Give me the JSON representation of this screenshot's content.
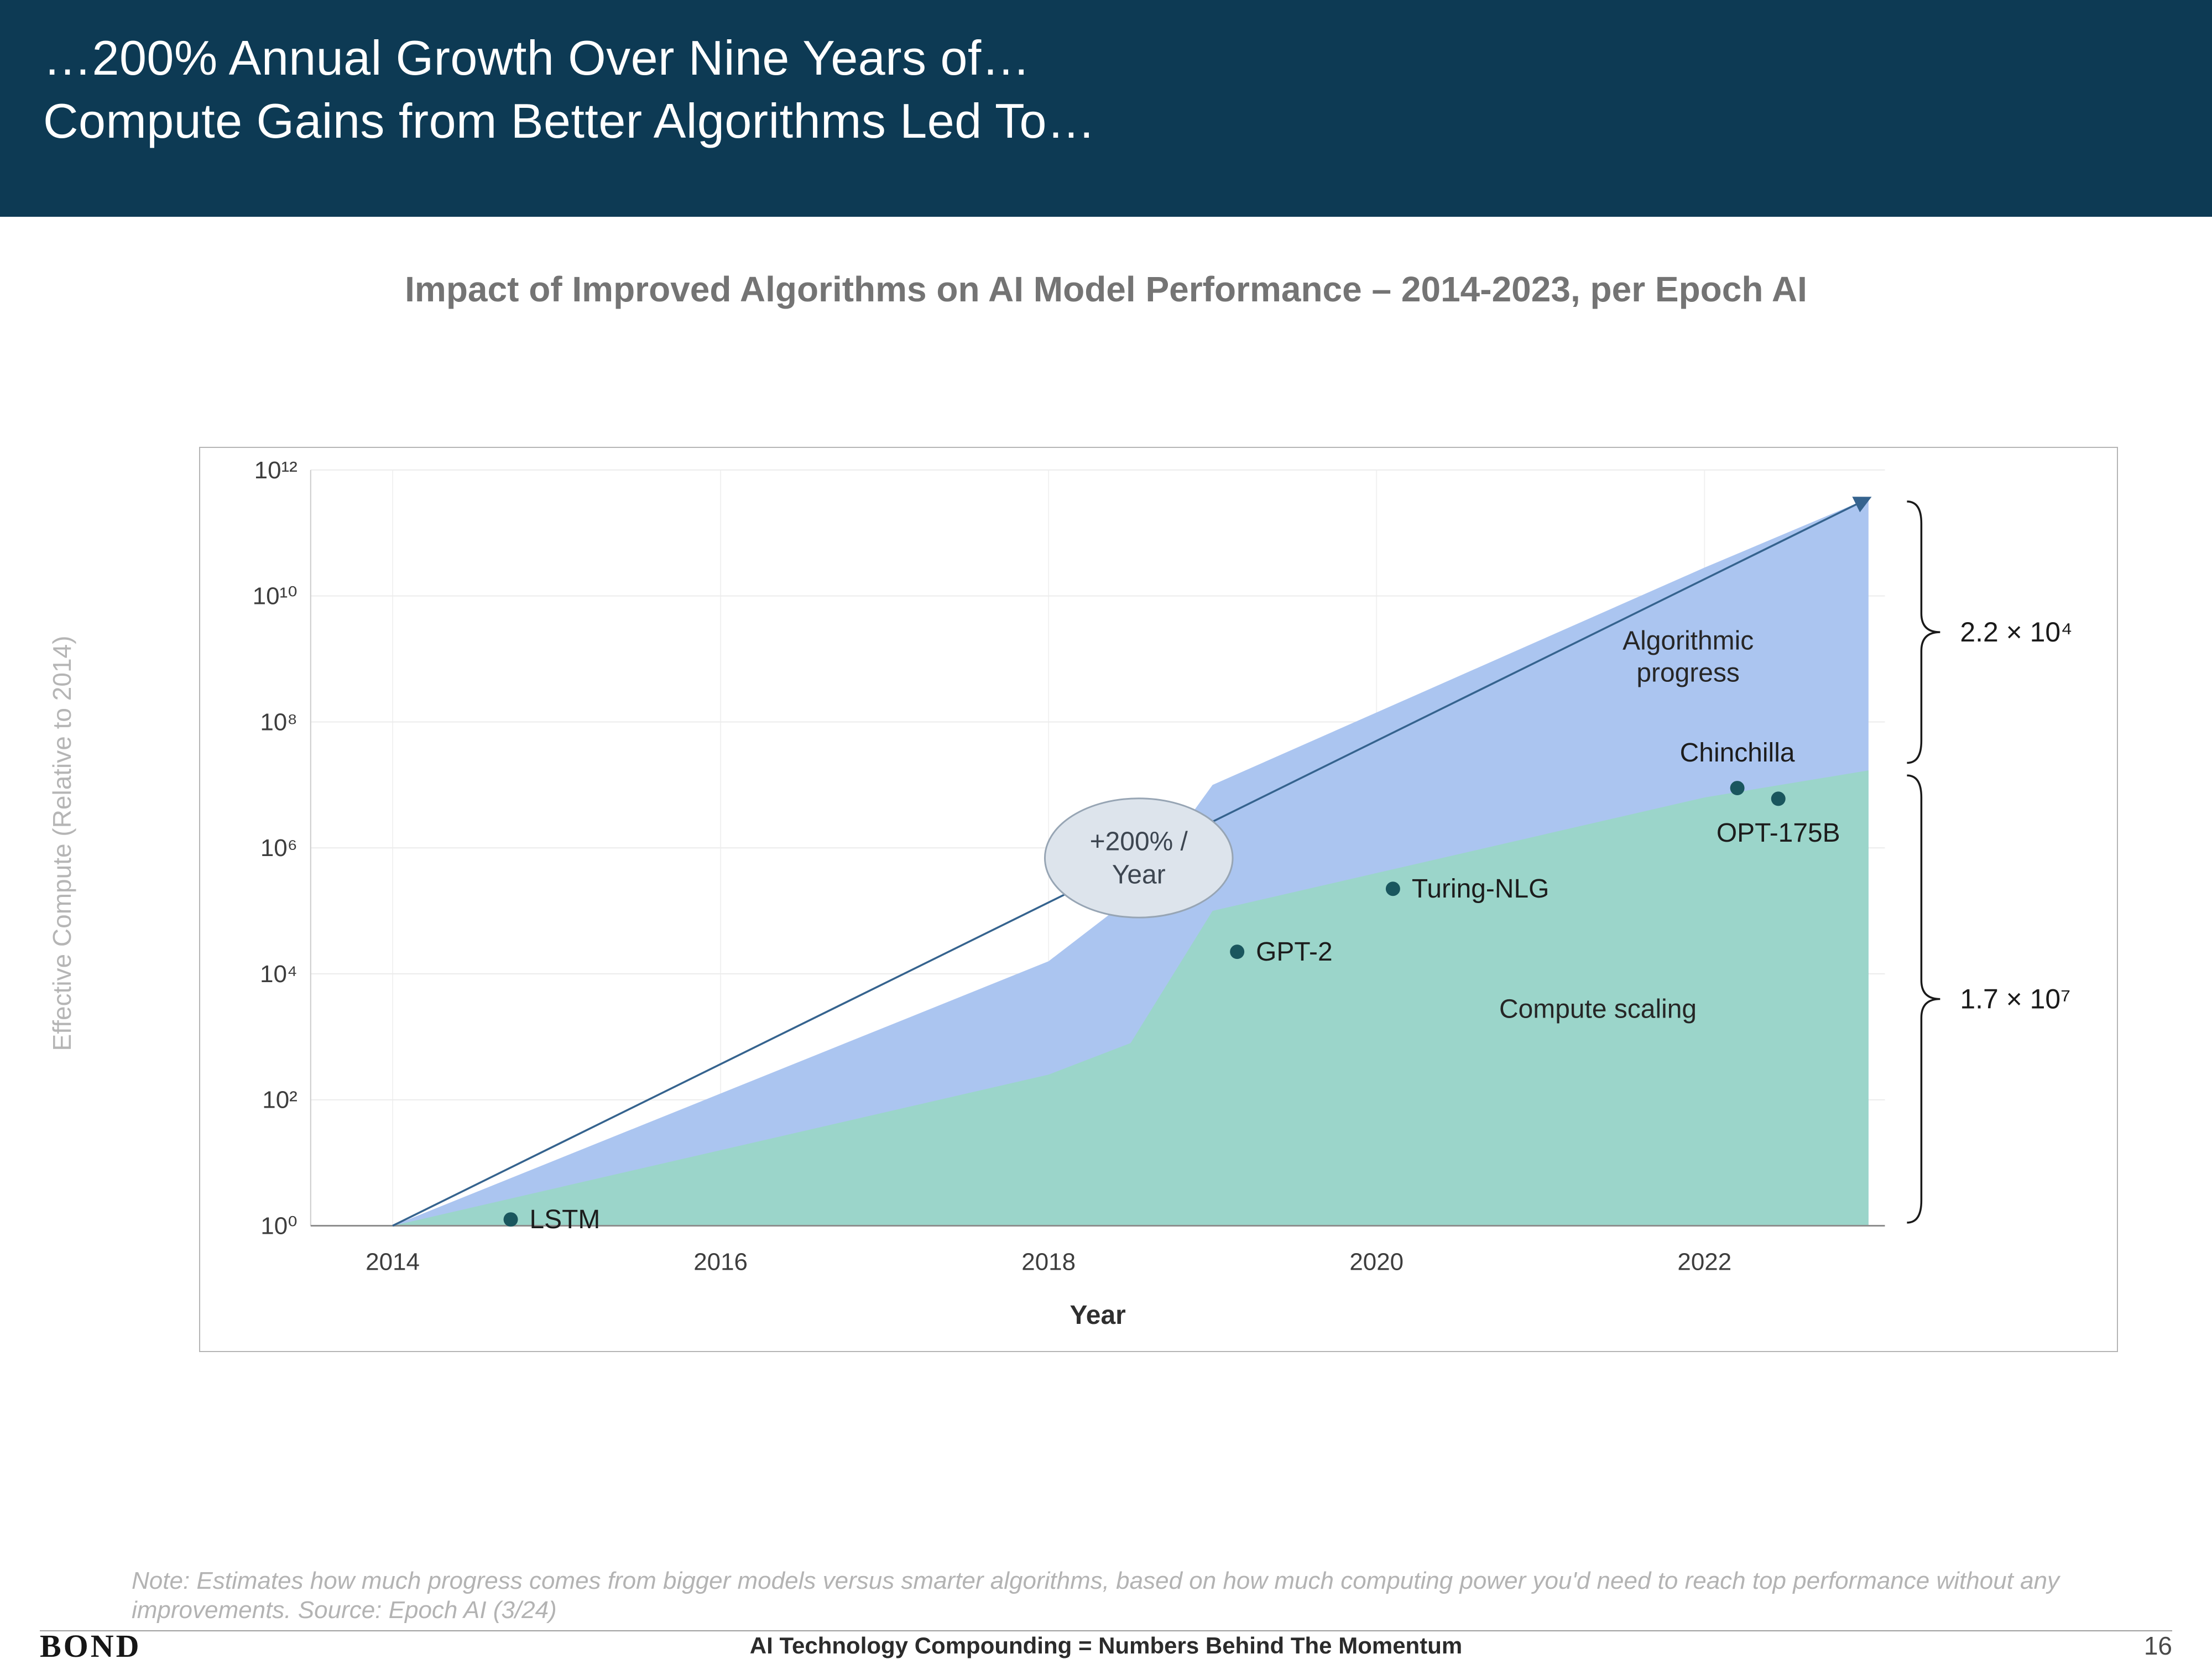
{
  "header": {
    "line1": "…200% Annual Growth Over Nine Years of…",
    "line2": "Compute Gains from Better Algorithms Led To…"
  },
  "slide": {
    "chart_title": "Impact of Improved Algorithms on AI Model Performance – 2014-2023, per Epoch AI",
    "note_line1": "Note: Estimates how much progress comes from bigger models versus smarter algorithms, based on how much computing power you'd need to reach top performance without any",
    "note_line2": "improvements. Source: Epoch AI (3/24)"
  },
  "footer": {
    "logo": "BOND",
    "center": "AI Technology Compounding = Numbers Behind The Momentum",
    "page_number": "16"
  },
  "colors": {
    "header_bg": "#0d3a54",
    "title_gray": "#747474",
    "area_blue": "#abc5f0",
    "area_teal": "#9bd5ca",
    "point_dark_teal": "#1a565e",
    "trend_navy": "#35638e"
  },
  "chart_data": {
    "type": "area",
    "title": "Impact of Improved Algorithms on AI Model Performance – 2014-2023, per Epoch AI",
    "xlabel": "Year",
    "ylabel": "Effective Compute (Relative to 2014)",
    "y_scale": "log",
    "grid": true,
    "x_ticks": [
      2014,
      2016,
      2018,
      2020,
      2022
    ],
    "x_range": [
      2013.5,
      2023.1
    ],
    "y_exponent_range": [
      0,
      12
    ],
    "y_ticks": [
      {
        "exponent": 0,
        "label": "10⁰"
      },
      {
        "exponent": 2,
        "label": "10²"
      },
      {
        "exponent": 4,
        "label": "10⁴"
      },
      {
        "exponent": 6,
        "label": "10⁶"
      },
      {
        "exponent": 8,
        "label": "10⁸"
      },
      {
        "exponent": 10,
        "label": "10¹⁰"
      },
      {
        "exponent": 12,
        "label": "10¹²"
      }
    ],
    "series": [
      {
        "name": "Algorithmic progress",
        "region": "upper",
        "fill": "#abc5f0",
        "x": [
          2014,
          2016,
          2018,
          2018.5,
          2019,
          2020,
          2021,
          2022,
          2023
        ],
        "y_exponent": [
          0,
          2.1,
          4.2,
          5.2,
          7.0,
          8.15,
          9.3,
          10.45,
          11.55
        ]
      },
      {
        "name": "Compute scaling",
        "region": "lower",
        "fill": "#9bd5ca",
        "x": [
          2014,
          2016,
          2018,
          2018.5,
          2019,
          2020,
          2021,
          2022,
          2023
        ],
        "y_exponent": [
          0,
          1.2,
          2.4,
          2.9,
          5.0,
          5.6,
          6.2,
          6.8,
          7.23
        ]
      }
    ],
    "trend_line": {
      "x": [
        2014,
        2023
      ],
      "y_exponent": [
        0,
        11.55
      ],
      "color": "#35638e"
    },
    "annotation": {
      "line1": "+200% /",
      "line2": "Year",
      "x": 2018.55,
      "y_exponent": 5.84,
      "fill": "#dde4ec",
      "border": "#97a5b4",
      "text_color": "#3d4651"
    },
    "point_color": "#1a565e",
    "points": [
      {
        "label": "LSTM",
        "x": 2014.72,
        "y_exponent": 0.1,
        "label_position": "right"
      },
      {
        "label": "GPT-2",
        "x": 2019.15,
        "y_exponent": 4.35,
        "label_position": "right"
      },
      {
        "label": "Turing-NLG",
        "x": 2020.1,
        "y_exponent": 5.35,
        "label_position": "right"
      },
      {
        "label": "Chinchilla",
        "x": 2022.2,
        "y_exponent": 6.95,
        "label_position": "above"
      },
      {
        "label": "OPT-175B",
        "x": 2022.45,
        "y_exponent": 6.78,
        "label_position": "below"
      }
    ],
    "region_labels": [
      {
        "lines": [
          "Algorithmic",
          "progress"
        ],
        "x": 2021.9,
        "y_exponent": 9.15
      },
      {
        "lines": [
          "Compute scaling"
        ],
        "x": 2021.35,
        "y_exponent": 3.3
      }
    ],
    "braces": [
      {
        "label": "2.2 × 10⁴",
        "from_exponent": 11.5,
        "to_exponent": 7.35
      },
      {
        "label": "1.7 × 10⁷",
        "from_exponent": 7.15,
        "to_exponent": 0.05
      }
    ]
  }
}
